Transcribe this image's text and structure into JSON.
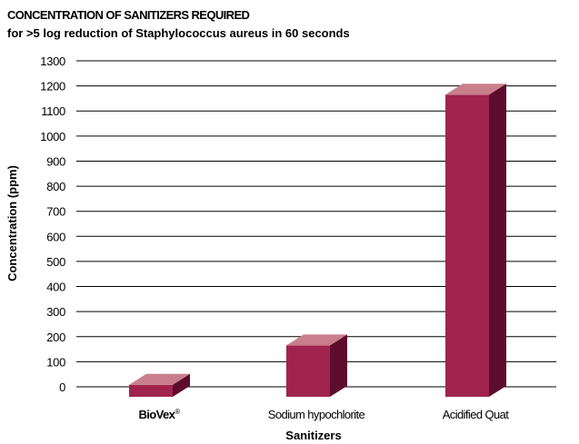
{
  "chart_data": {
    "type": "bar",
    "title": "CONCENTRATION OF SANITIZERS REQUIRED",
    "subtitle": "for >5  log reduction of Staphylococcus aureus in 60 seconds",
    "xlabel": "Sanitizers",
    "ylabel": "Concentration (ppm)",
    "ylim": [
      0,
      1300
    ],
    "yticks": [
      "0",
      "100",
      "200",
      "300",
      "400",
      "500",
      "600",
      "700",
      "800",
      "900",
      "1000",
      "1100",
      "1200",
      "1300"
    ],
    "categories": [
      "BioVex®",
      "Sodium hypochlorite",
      "Acidified Quat"
    ],
    "values": [
      8,
      165,
      1165
    ],
    "grid": "horizontal",
    "colors": {
      "front": "#a0244e",
      "side": "#5e0c2c",
      "top": "#c87f8b",
      "grid": "#000000"
    }
  }
}
